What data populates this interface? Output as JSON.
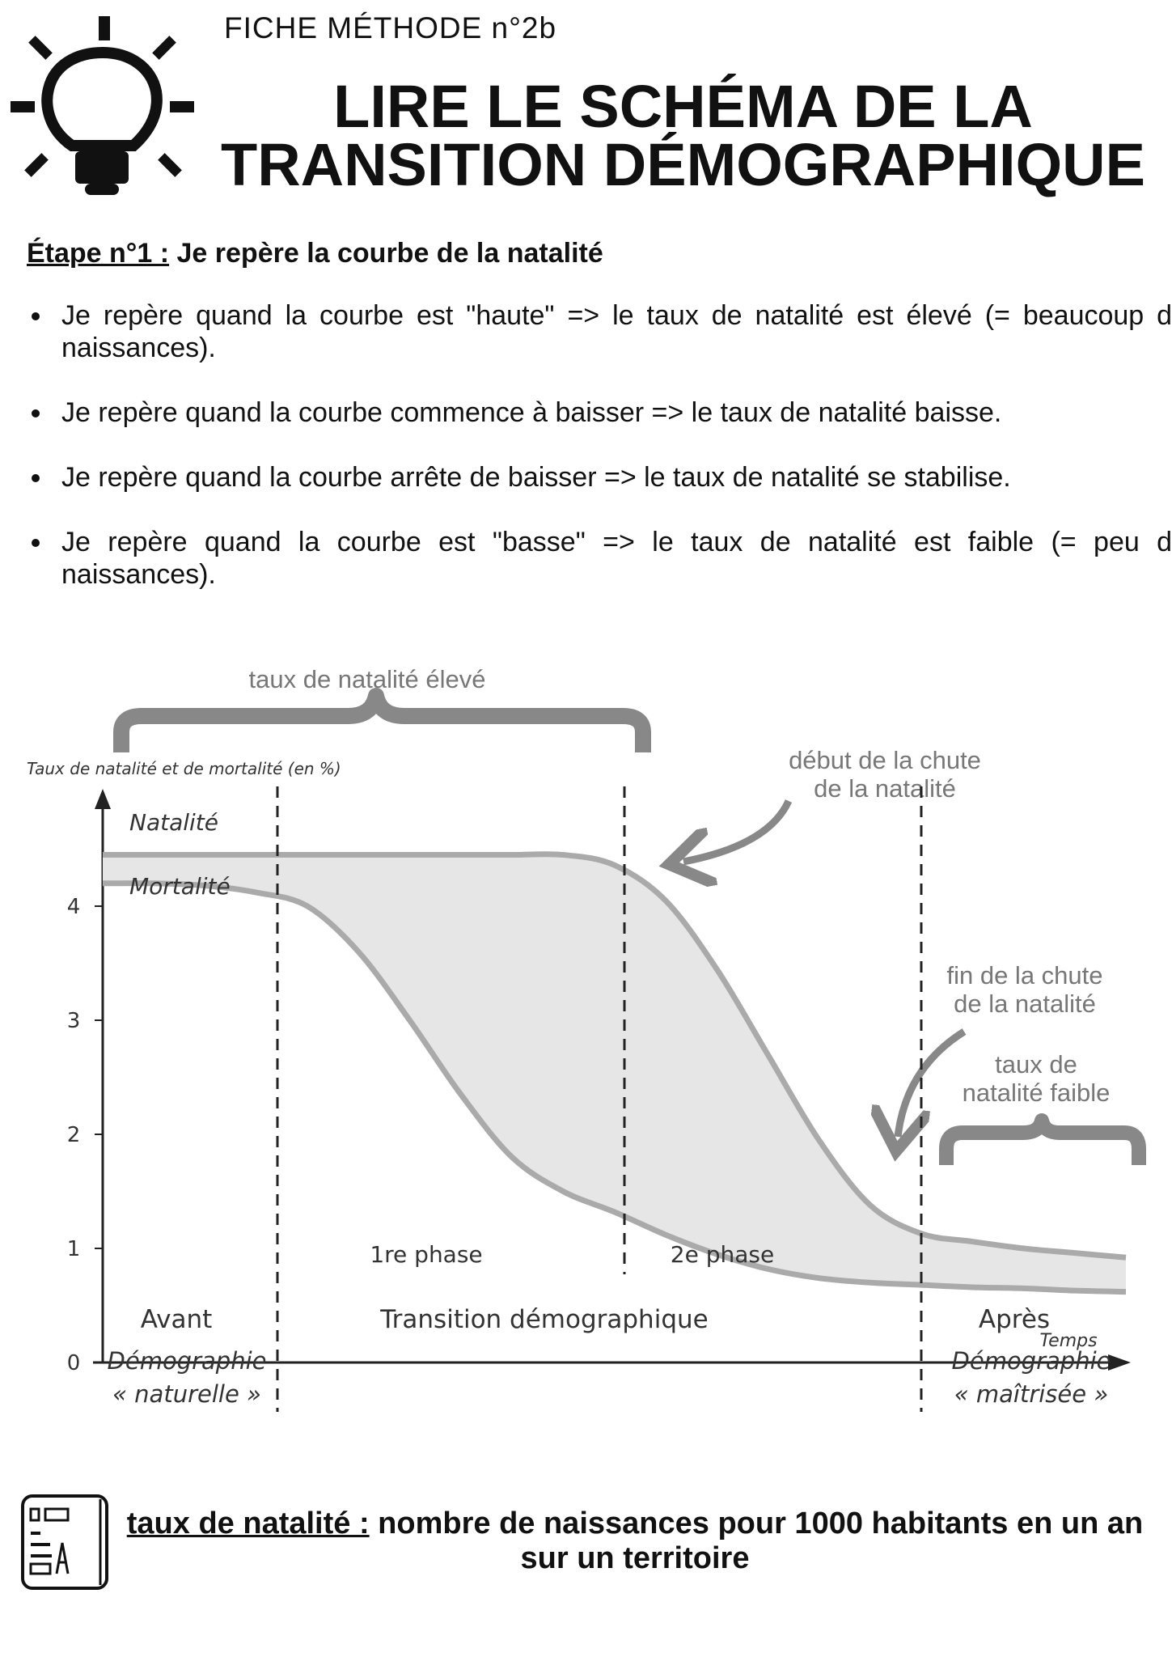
{
  "header": {
    "kicker": "FICHE MÉTHODE n°2b",
    "title_line1": "LIRE LE SCHÉMA DE LA",
    "title_line2": "TRANSITION DÉMOGRAPHIQUE",
    "icon": "lightbulb-icon"
  },
  "step": {
    "label": "Étape n°1 :",
    "text": " Je repère la courbe de la natalité"
  },
  "bullets": [
    "Je repère quand la courbe est \"haute\" => le taux de natalité est élevé (= beaucoup de naissances).",
    "Je repère quand la courbe commence à baisser => le taux de natalité baisse.",
    "Je repère quand la courbe arrête de baisser => le taux de natalité se stabilise.",
    "Je repère quand la courbe est \"basse\" => le taux de natalité est faible (= peu de naissances)."
  ],
  "annotations": {
    "high": "taux de natalité élevé",
    "start_fall_1": "début de la chute",
    "start_fall_2": "de la natalité",
    "end_fall_1": "fin de la chute",
    "end_fall_2": "de la natalité",
    "low_1": "taux de",
    "low_2": "natalité faible",
    "color": "#888888"
  },
  "chart_data": {
    "type": "line",
    "ylabel": "Taux de natalité et de mortalité (en %)",
    "xlabel": "Temps",
    "ylim": [
      0,
      4.7
    ],
    "yticks": [
      "0",
      "1",
      "2",
      "3",
      "4"
    ],
    "series": [
      {
        "name": "Natalité",
        "values": [
          4.45,
          4.45,
          4.45,
          4.45,
          4.45,
          4.45,
          4.45,
          4.45,
          4.45,
          4.45,
          4.36,
          4.05,
          3.45,
          2.7,
          1.95,
          1.38,
          1.13,
          1.06,
          1.0,
          0.96,
          0.92
        ]
      },
      {
        "name": "Mortalité",
        "values": [
          4.2,
          4.2,
          4.18,
          4.12,
          4.0,
          3.6,
          3.0,
          2.35,
          1.8,
          1.5,
          1.32,
          1.12,
          0.95,
          0.82,
          0.74,
          0.7,
          0.68,
          0.66,
          0.65,
          0.63,
          0.62
        ]
      }
    ],
    "phases": [
      "1re phase",
      "2e phase"
    ],
    "periods": [
      {
        "label": "Avant",
        "sub1": "Démographie",
        "sub2": "« naturelle »"
      },
      {
        "label": "Transition démographique"
      },
      {
        "label": "Après",
        "sub1": "Démographie",
        "sub2": "« maîtrisée »"
      }
    ],
    "curve_color": "#aaaaaa",
    "fill_color": "#e6e6e6",
    "grid": false
  },
  "definition": {
    "term": "taux de natalité :",
    "text": " nombre de naissances pour 1000 habitants en un an sur un territoire",
    "icon": "glossary-card-icon"
  }
}
